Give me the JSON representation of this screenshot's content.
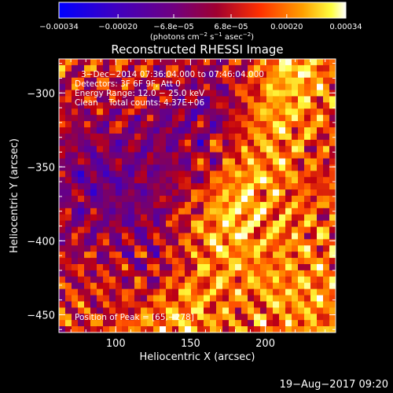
{
  "chart_data": {
    "type": "heatmap",
    "title": "Reconstructed RHESSI Image",
    "xlabel": "Heliocentric X (arcsec)",
    "ylabel": "Heliocentric Y (arcsec)",
    "xlim": [
      62,
      247
    ],
    "ylim": [
      -462,
      -277
    ],
    "xticks": [
      100,
      150,
      200
    ],
    "yticks": [
      -300,
      -350,
      -400,
      -450
    ],
    "x_tick_labels": [
      "100",
      "150",
      "200"
    ],
    "y_tick_labels": [
      "−300",
      "−350",
      "−400",
      "−450"
    ],
    "colorbar": {
      "range": [
        -0.00034,
        0.00034
      ],
      "tick_labels": [
        "−0.00034",
        "−0.00020",
        "−6.8e−05",
        "6.8e−05",
        "0.00020",
        "0.00034"
      ],
      "unit_main": "(photons cm",
      "unit_sup1": "−2",
      "unit_mid": " s",
      "unit_sup2": "−1",
      "unit_mid2": " asec",
      "unit_sup3": "−2",
      "unit_end": ")"
    },
    "annotations": {
      "time_range": "3−Dec−2014 07:36:04.000 to 07:46:04.000",
      "detectors": "Detectors: 3F 6F 9F, Att 0",
      "energy": "Energy Range: 12.0 − 25.0 keV",
      "clean": "Clean    Total counts: 4.37E+06",
      "peak": "Position of Peak = [65,−278]"
    },
    "peak_position": [
      65,
      -278
    ],
    "colormap": [
      "#0000ff",
      "#4000c0",
      "#600090",
      "#800060",
      "#c00010",
      "#ff5000",
      "#ffa000",
      "#ffff40",
      "#ffffff"
    ],
    "background_color": "#000000"
  },
  "timestamp": "19−Aug−2017 09:20"
}
